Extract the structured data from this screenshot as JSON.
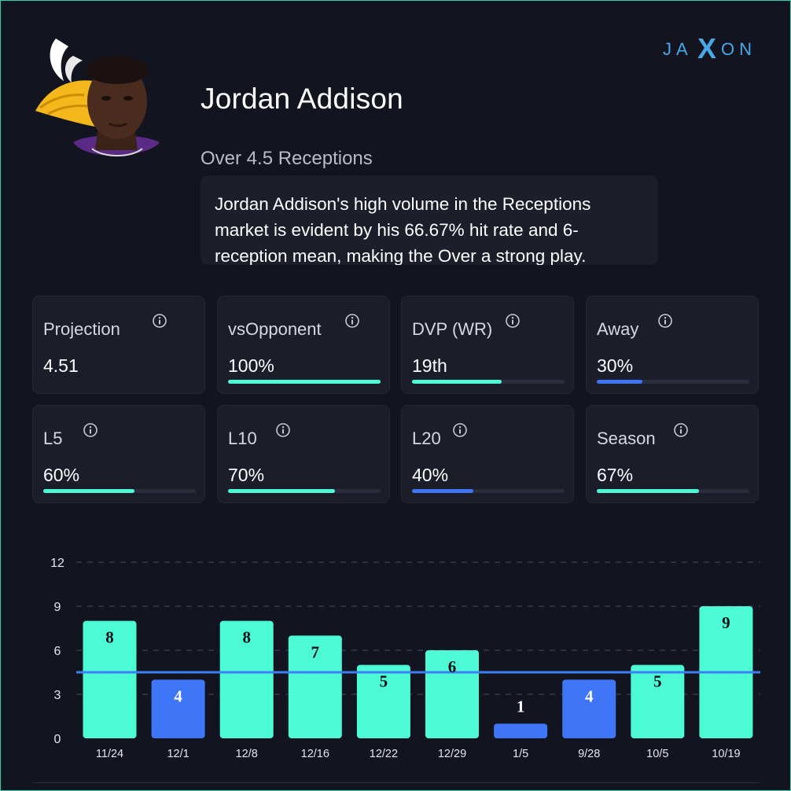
{
  "player": {
    "name": "Jordan Addison",
    "prop": "Over 4.5 Receptions",
    "summary": "Jordan Addison's high volume in the Receptions market is evident by his 66.67% hit rate and 6-reception mean, making the Over a strong play."
  },
  "logo": {
    "left": "JA",
    "mid": "X",
    "right": "ON"
  },
  "colors": {
    "hit": "#4cfbd6",
    "miss": "#3f75f7",
    "line": "#3e7ef5",
    "bg": "#121420"
  },
  "cards": [
    {
      "label": "Projection",
      "value": "4.51",
      "fill": null,
      "color": null
    },
    {
      "label": "vsOpponent",
      "value": "100%",
      "fill": 1.0,
      "color": "#4cfbd6"
    },
    {
      "label": "DVP (WR)",
      "value": "19th",
      "fill": 0.59,
      "color": "#4cfbd6"
    },
    {
      "label": "Away",
      "value": "30%",
      "fill": 0.3,
      "color": "#3f75f7"
    },
    {
      "label": "L5",
      "value": "60%",
      "fill": 0.6,
      "color": "#4cfbd6"
    },
    {
      "label": "L10",
      "value": "70%",
      "fill": 0.7,
      "color": "#4cfbd6"
    },
    {
      "label": "L20",
      "value": "40%",
      "fill": 0.4,
      "color": "#3f75f7"
    },
    {
      "label": "Season",
      "value": "67%",
      "fill": 0.67,
      "color": "#4cfbd6"
    }
  ],
  "chart_data": {
    "type": "bar",
    "title": "",
    "categories": [
      "11/24",
      "12/1",
      "12/8",
      "12/16",
      "12/22",
      "12/29",
      "1/5",
      "9/28",
      "10/5",
      "10/19"
    ],
    "values": [
      8,
      4,
      8,
      7,
      5,
      6,
      1,
      4,
      5,
      9
    ],
    "line": 4.5,
    "ylim": [
      0,
      12
    ],
    "yticks": [
      0,
      3,
      6,
      9,
      12
    ],
    "xlabel": "",
    "ylabel": "",
    "grid": true
  }
}
